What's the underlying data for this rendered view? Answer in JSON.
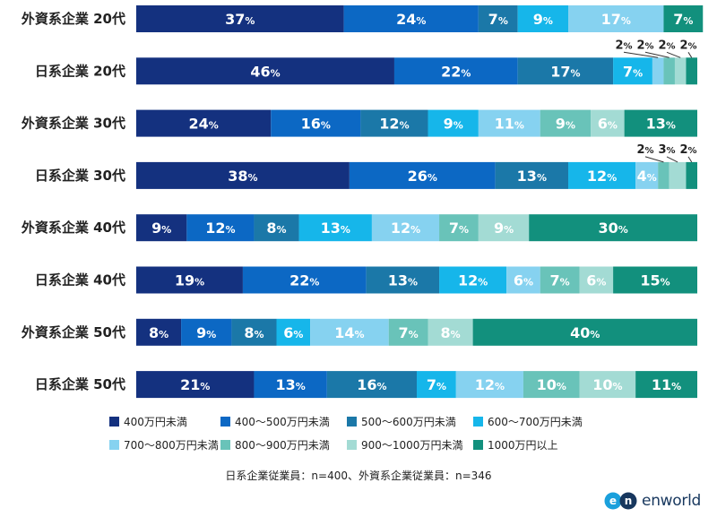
{
  "chart_data": {
    "type": "bar",
    "orientation": "horizontal",
    "stacked": true,
    "percent_stacked": true,
    "categories": [
      "外資系企業 20代",
      "日系企業 20代",
      "外資系企業 30代",
      "日系企業 30代",
      "外資系企業 40代",
      "日系企業 40代",
      "外資系企業 50代",
      "日系企業 50代"
    ],
    "series": [
      {
        "name": "400万円未満",
        "color": "#14317f",
        "values": [
          37,
          46,
          24,
          38,
          9,
          19,
          8,
          21
        ]
      },
      {
        "name": "400～500万円未満",
        "color": "#0c68c4",
        "values": [
          24,
          22,
          16,
          26,
          12,
          22,
          9,
          13
        ]
      },
      {
        "name": "500～600万円未満",
        "color": "#1b78a8",
        "values": [
          7,
          17,
          12,
          13,
          8,
          13,
          8,
          16
        ]
      },
      {
        "name": "600～700万円未満",
        "color": "#16b6ea",
        "values": [
          9,
          7,
          9,
          12,
          13,
          12,
          6,
          7
        ]
      },
      {
        "name": "700～800万円未満",
        "color": "#86d2f0",
        "values": [
          17,
          2,
          11,
          4,
          12,
          6,
          14,
          12
        ]
      },
      {
        "name": "800～900万円未満",
        "color": "#69c3b9",
        "values": [
          0,
          2,
          9,
          2,
          7,
          7,
          7,
          10
        ]
      },
      {
        "name": "900～1000万円未満",
        "color": "#a3dbd4",
        "values": [
          0,
          2,
          6,
          3,
          9,
          6,
          8,
          10
        ]
      },
      {
        "name": "1000万円以上",
        "color": "#12907d",
        "values": [
          7,
          2,
          13,
          2,
          30,
          15,
          40,
          11
        ]
      }
    ],
    "value_suffix": "%",
    "legend_position": "bottom",
    "grid": false,
    "xlim": [
      0,
      100
    ]
  },
  "footnote": "日系企業従業員：n=400、外資系企業従業員：n=346",
  "logo": {
    "text": "enworld",
    "mark": "en"
  }
}
